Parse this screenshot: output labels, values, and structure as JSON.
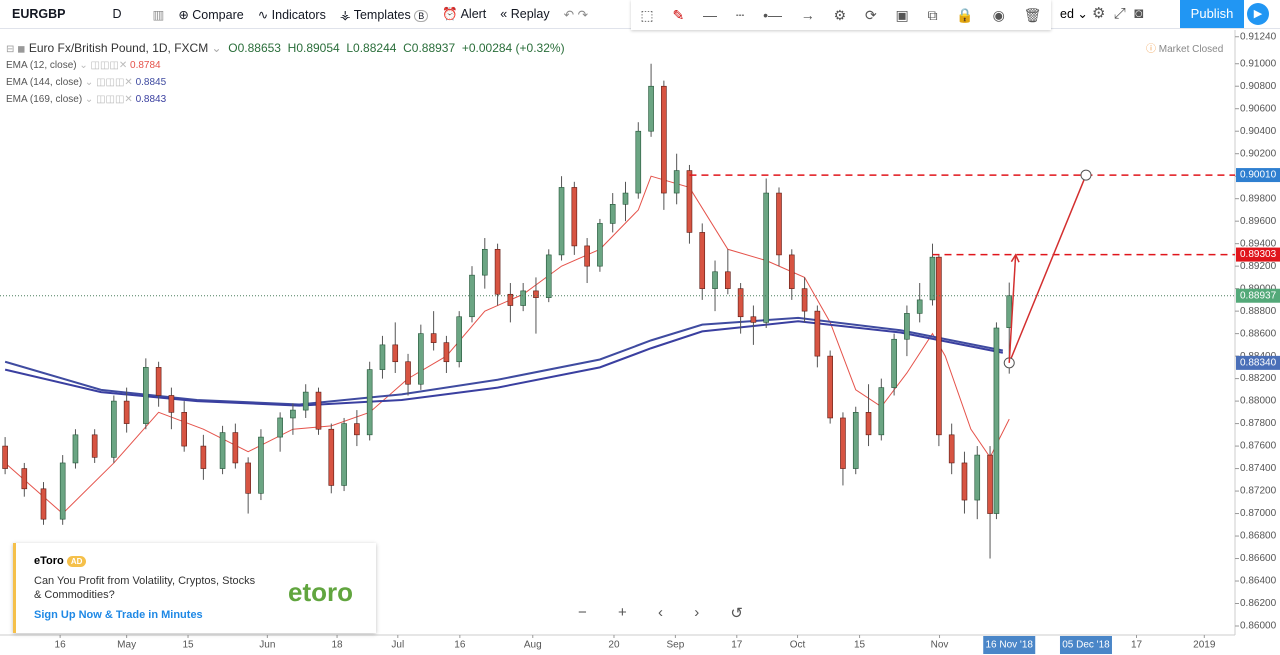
{
  "toolbar": {
    "symbol": "EURGBP",
    "interval": "D",
    "compare": "Compare",
    "indicators": "Indicators",
    "templates": "Templates",
    "templates_badge": "B",
    "alert": "Alert",
    "replay": "Replay",
    "layout": "ed",
    "publish": "Publish"
  },
  "legend": {
    "open": "O0.88653",
    "high": "H0.89054",
    "low": "L0.88244",
    "close": "C0.88937",
    "change": "+0.00284 (+0.32%)",
    "status": "Market Closed"
  },
  "ad": {
    "brand": "eToro",
    "badge": "AD",
    "text": "Can You Profit from Volatility, Cryptos, Stocks & Commodities?",
    "cta": "Sign Up Now & Trade in Minutes",
    "logo": "etoro"
  },
  "chart_data": {
    "type": "candlestick",
    "title": "Euro Fx/British Pound, 1D, FXCM",
    "up_color": "#6ba583",
    "down_color": "#d75442",
    "x": [
      0,
      3,
      6,
      9,
      11,
      14,
      17,
      19,
      22,
      24,
      26,
      28,
      31,
      34,
      36,
      38,
      40,
      43,
      45,
      47,
      49,
      51,
      53,
      55,
      57,
      59,
      61,
      63,
      65,
      67,
      69,
      71,
      73,
      75,
      77,
      79,
      81,
      83,
      85,
      87,
      89,
      91,
      93,
      95,
      97,
      99,
      101,
      103,
      105,
      107,
      109,
      111,
      113,
      115,
      117,
      119,
      121,
      123,
      125,
      127,
      129,
      131,
      133,
      135,
      137,
      139,
      141,
      143,
      145,
      146,
      148,
      150,
      152,
      154,
      155,
      157
    ],
    "open": [
      0.876,
      0.874,
      0.8722,
      0.8695,
      0.8745,
      0.877,
      0.875,
      0.88,
      0.878,
      0.883,
      0.8805,
      0.879,
      0.876,
      0.874,
      0.8772,
      0.8745,
      0.8718,
      0.8768,
      0.8785,
      0.8792,
      0.8808,
      0.8775,
      0.8725,
      0.878,
      0.877,
      0.8828,
      0.885,
      0.8835,
      0.8815,
      0.886,
      0.8852,
      0.8835,
      0.8875,
      0.8912,
      0.8935,
      0.8895,
      0.8885,
      0.8898,
      0.8892,
      0.893,
      0.899,
      0.8938,
      0.892,
      0.8958,
      0.8975,
      0.8985,
      0.904,
      0.908,
      0.8985,
      0.9005,
      0.895,
      0.89,
      0.8915,
      0.89,
      0.8875,
      0.887,
      0.8985,
      0.893,
      0.89,
      0.888,
      0.884,
      0.8785,
      0.874,
      0.879,
      0.877,
      0.8812,
      0.8855,
      0.8878,
      0.889,
      0.8928,
      0.877,
      0.8745,
      0.8712,
      0.8752,
      0.87,
      0.88653
    ],
    "high": [
      0.8768,
      0.8745,
      0.8728,
      0.8752,
      0.8775,
      0.8775,
      0.8805,
      0.8812,
      0.8838,
      0.8835,
      0.8812,
      0.88,
      0.877,
      0.8778,
      0.878,
      0.875,
      0.8775,
      0.879,
      0.8798,
      0.8815,
      0.8812,
      0.878,
      0.8785,
      0.8792,
      0.8835,
      0.8858,
      0.887,
      0.8842,
      0.8868,
      0.888,
      0.8858,
      0.888,
      0.892,
      0.8945,
      0.894,
      0.8905,
      0.8905,
      0.891,
      0.8935,
      0.9,
      0.8995,
      0.8945,
      0.8962,
      0.8985,
      0.8995,
      0.9048,
      0.91,
      0.9085,
      0.902,
      0.901,
      0.8958,
      0.8925,
      0.8935,
      0.8905,
      0.8885,
      0.8998,
      0.899,
      0.8935,
      0.891,
      0.8885,
      0.8845,
      0.879,
      0.8795,
      0.8815,
      0.882,
      0.886,
      0.8885,
      0.8905,
      0.894,
      0.893,
      0.878,
      0.8755,
      0.876,
      0.876,
      0.887,
      0.89054
    ],
    "low": [
      0.8735,
      0.8715,
      0.869,
      0.869,
      0.874,
      0.8745,
      0.8745,
      0.8772,
      0.8775,
      0.8795,
      0.8775,
      0.8755,
      0.873,
      0.8735,
      0.874,
      0.87,
      0.8712,
      0.8755,
      0.877,
      0.8785,
      0.877,
      0.8718,
      0.872,
      0.876,
      0.8765,
      0.882,
      0.8825,
      0.8805,
      0.881,
      0.8845,
      0.8825,
      0.883,
      0.887,
      0.89,
      0.8885,
      0.887,
      0.888,
      0.886,
      0.8888,
      0.8925,
      0.893,
      0.8905,
      0.8915,
      0.895,
      0.896,
      0.898,
      0.9035,
      0.897,
      0.8975,
      0.894,
      0.889,
      0.888,
      0.8895,
      0.886,
      0.885,
      0.8865,
      0.892,
      0.889,
      0.887,
      0.883,
      0.878,
      0.8725,
      0.8735,
      0.876,
      0.8765,
      0.8805,
      0.884,
      0.887,
      0.8885,
      0.876,
      0.8735,
      0.87,
      0.8695,
      0.866,
      0.8695,
      0.88244
    ],
    "close": [
      0.874,
      0.8722,
      0.8695,
      0.8745,
      0.877,
      0.875,
      0.88,
      0.878,
      0.883,
      0.8805,
      0.879,
      0.876,
      0.874,
      0.8772,
      0.8745,
      0.8718,
      0.8768,
      0.8785,
      0.8792,
      0.8808,
      0.8775,
      0.8725,
      0.878,
      0.877,
      0.8828,
      0.885,
      0.8835,
      0.8815,
      0.886,
      0.8852,
      0.8835,
      0.8875,
      0.8912,
      0.8935,
      0.8895,
      0.8885,
      0.8898,
      0.8892,
      0.893,
      0.899,
      0.8938,
      0.892,
      0.8958,
      0.8975,
      0.8985,
      0.904,
      0.908,
      0.8985,
      0.9005,
      0.895,
      0.89,
      0.8915,
      0.89,
      0.8875,
      0.887,
      0.8985,
      0.893,
      0.89,
      0.888,
      0.884,
      0.8785,
      0.874,
      0.879,
      0.877,
      0.8812,
      0.8855,
      0.8878,
      0.889,
      0.8928,
      0.877,
      0.8745,
      0.8712,
      0.8752,
      0.87,
      0.8865,
      0.88937
    ],
    "lines": [
      {
        "name": "EMA (12, close)",
        "last": 0.8784,
        "color": "#e5534b",
        "width": 1,
        "x": [
          0,
          9,
          17,
          24,
          31,
          38,
          45,
          51,
          57,
          63,
          69,
          75,
          81,
          87,
          93,
          99,
          101,
          107,
          113,
          119,
          125,
          129,
          133,
          137,
          141,
          145,
          147,
          151,
          154,
          157
        ],
        "values": [
          0.8745,
          0.87,
          0.8745,
          0.879,
          0.8775,
          0.8755,
          0.8775,
          0.8778,
          0.879,
          0.882,
          0.884,
          0.888,
          0.8895,
          0.892,
          0.8935,
          0.897,
          0.9,
          0.899,
          0.8935,
          0.8925,
          0.891,
          0.887,
          0.881,
          0.8795,
          0.8825,
          0.886,
          0.884,
          0.8775,
          0.875,
          0.8784
        ]
      },
      {
        "name": "EMA (144, close)",
        "last": 0.8845,
        "color": "#3f4ba0",
        "width": 2,
        "x": [
          0,
          15,
          30,
          46,
          62,
          77,
          93,
          101,
          109,
          124,
          140,
          156
        ],
        "values": [
          0.8835,
          0.881,
          0.8801,
          0.8797,
          0.8806,
          0.8819,
          0.8837,
          0.8854,
          0.8868,
          0.8874,
          0.8863,
          0.8845
        ]
      },
      {
        "name": "EMA (169, close)",
        "last": 0.8843,
        "color": "#3a3fa0",
        "width": 2,
        "x": [
          0,
          15,
          30,
          46,
          62,
          77,
          93,
          101,
          109,
          124,
          140,
          156
        ],
        "values": [
          0.8828,
          0.8808,
          0.88,
          0.8796,
          0.8801,
          0.8812,
          0.883,
          0.8847,
          0.8862,
          0.8871,
          0.8861,
          0.8843
        ]
      }
    ],
    "xlim": [
      -0.8,
      192.3
    ],
    "ylim": [
      0.8592,
      0.913
    ],
    "xticks": [
      {
        "value": 8.6,
        "label": "16"
      },
      {
        "value": 19,
        "label": "May"
      },
      {
        "value": 28.6,
        "label": "15"
      },
      {
        "value": 41,
        "label": "Jun"
      },
      {
        "value": 51.9,
        "label": "18"
      },
      {
        "value": 61.4,
        "label": "Jul"
      },
      {
        "value": 71.1,
        "label": "16"
      },
      {
        "value": 82.5,
        "label": "Aug"
      },
      {
        "value": 95.2,
        "label": "20"
      },
      {
        "value": 104.8,
        "label": "Sep"
      },
      {
        "value": 114.4,
        "label": "17"
      },
      {
        "value": 123.9,
        "label": "Oct"
      },
      {
        "value": 133.6,
        "label": "15"
      },
      {
        "value": 146.1,
        "label": "Nov"
      },
      {
        "value": 176.9,
        "label": "17"
      },
      {
        "value": 187.5,
        "label": "2019"
      }
    ],
    "yticks": [
      {
        "value": 0.86,
        "label": "0.86000"
      },
      {
        "value": 0.862,
        "label": "0.86200"
      },
      {
        "value": 0.864,
        "label": "0.86400"
      },
      {
        "value": 0.866,
        "label": "0.86600"
      },
      {
        "value": 0.868,
        "label": "0.86800"
      },
      {
        "value": 0.87,
        "label": "0.87000"
      },
      {
        "value": 0.872,
        "label": "0.87200"
      },
      {
        "value": 0.874,
        "label": "0.87400"
      },
      {
        "value": 0.876,
        "label": "0.87600"
      },
      {
        "value": 0.878,
        "label": "0.87800"
      },
      {
        "value": 0.88,
        "label": "0.88000"
      },
      {
        "value": 0.882,
        "label": "0.88200"
      },
      {
        "value": 0.884,
        "label": "0.88400"
      },
      {
        "value": 0.886,
        "label": "0.88600"
      },
      {
        "value": 0.888,
        "label": "0.88800"
      },
      {
        "value": 0.89,
        "label": "0.89000"
      },
      {
        "value": 0.892,
        "label": "0.89200"
      },
      {
        "value": 0.894,
        "label": "0.89400"
      },
      {
        "value": 0.896,
        "label": "0.89600"
      },
      {
        "value": 0.898,
        "label": "0.89800"
      },
      {
        "value": 0.9,
        "label": "0.90000"
      },
      {
        "value": 0.902,
        "label": "0.90200"
      },
      {
        "value": 0.904,
        "label": "0.90400"
      },
      {
        "value": 0.906,
        "label": "0.90600"
      },
      {
        "value": 0.908,
        "label": "0.90800"
      },
      {
        "value": 0.91,
        "label": "0.91000"
      },
      {
        "value": 0.9124,
        "label": "0.91240"
      }
    ],
    "markers": [
      {
        "value": 0.9001,
        "label": "0.90010",
        "color": "#2f7fd0",
        "dash_from": 107
      },
      {
        "value": 0.89303,
        "label": "0.89303",
        "color": "#e0151b",
        "dash_from": 145
      },
      {
        "value": 0.88937,
        "label": "0.88937",
        "color": "#53a979",
        "dotted": true
      },
      {
        "value": 0.8834,
        "label": "0.88340",
        "color": "#4a6fb8"
      }
    ],
    "arrows": [
      {
        "x": [
          157,
          169
        ],
        "y": [
          0.8834,
          0.9001
        ],
        "color": "#d32f2f"
      },
      {
        "x": [
          157,
          158
        ],
        "y": [
          0.8834,
          0.893
        ],
        "color": "#d32f2f"
      }
    ],
    "crosshair_dates": [
      {
        "value": 157,
        "label": "16 Nov '18"
      },
      {
        "value": 169,
        "label": "05 Dec '18"
      }
    ]
  }
}
